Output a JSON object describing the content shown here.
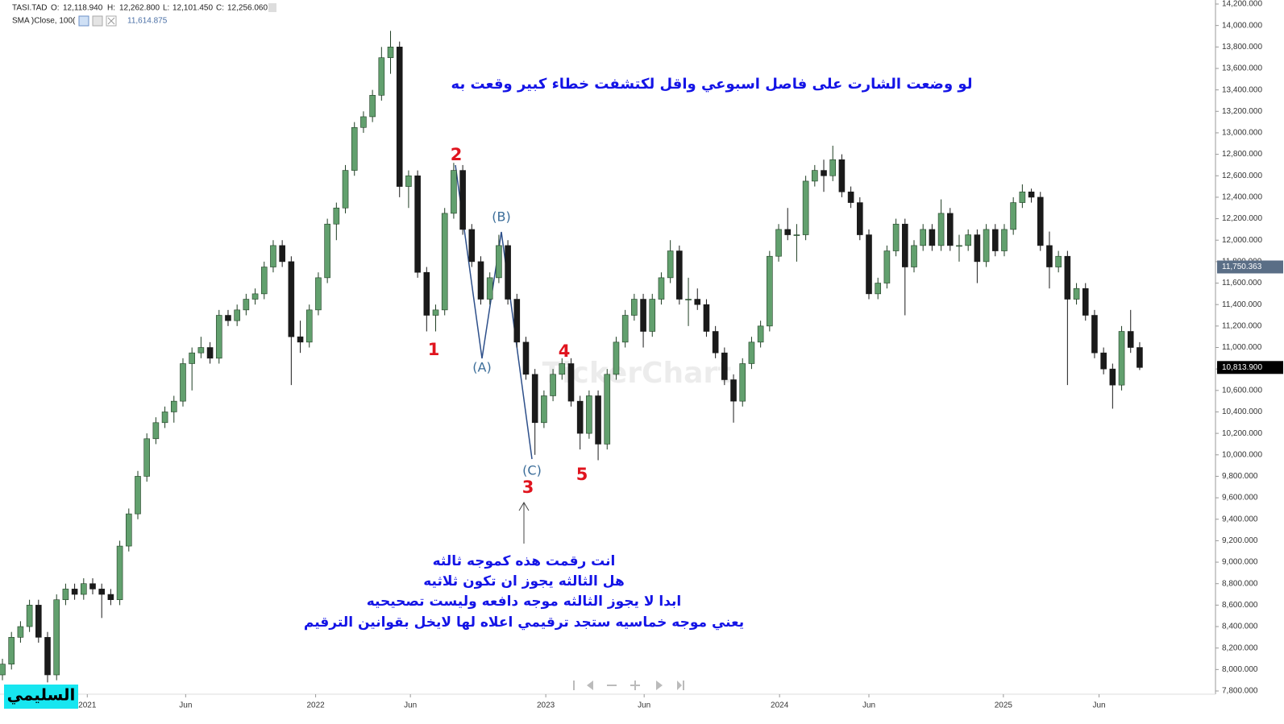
{
  "header": {
    "symbol": "TASI.TAD",
    "o_label": "O:",
    "o": "12,118.940",
    "h_label": "H:",
    "h": "12,262.800",
    "l_label": "L:",
    "l": "12,101.450",
    "c_label": "C:",
    "c": "12,256.060",
    "sma_label": "SMA )Close, 100(",
    "sma_value": "11,614.875"
  },
  "chart_data": {
    "type": "candlestick",
    "grid": false,
    "up_color": "#62a06e",
    "down_color": "#1a1a1a",
    "annotation_color": "#1414e6",
    "wave_color": "#e0141e",
    "corrective_color": "#3b6d99",
    "xlim": [
      -0.27,
      134.4
    ],
    "ylim": [
      7800,
      14200
    ],
    "xticks": [
      {
        "value": 9.4,
        "label": "2021"
      },
      {
        "value": 20.3,
        "label": "Jun"
      },
      {
        "value": 34.7,
        "label": "2022"
      },
      {
        "value": 45.2,
        "label": "Jun"
      },
      {
        "value": 60.2,
        "label": "2023"
      },
      {
        "value": 71.1,
        "label": "Jun"
      },
      {
        "value": 86.1,
        "label": "2024"
      },
      {
        "value": 96,
        "label": "Jun"
      },
      {
        "value": 110.9,
        "label": "2025"
      },
      {
        "value": 121.5,
        "label": "Jun"
      }
    ],
    "yticks": [
      {
        "value": 7800,
        "label": "7,800.000"
      },
      {
        "value": 8000,
        "label": "8,000.000"
      },
      {
        "value": 8200,
        "label": "8,200.000"
      },
      {
        "value": 8400,
        "label": "8,400.000"
      },
      {
        "value": 8600,
        "label": "8,600.000"
      },
      {
        "value": 8800,
        "label": "8,800.000"
      },
      {
        "value": 9000,
        "label": "9,000.000"
      },
      {
        "value": 9200,
        "label": "9,200.000"
      },
      {
        "value": 9400,
        "label": "9,400.000"
      },
      {
        "value": 9600,
        "label": "9,600.000"
      },
      {
        "value": 9800,
        "label": "9,800.000"
      },
      {
        "value": 10000,
        "label": "10,000.000"
      },
      {
        "value": 10200,
        "label": "10,200.000"
      },
      {
        "value": 10400,
        "label": "10,400.000"
      },
      {
        "value": 10600,
        "label": "10,600.000"
      },
      {
        "value": 10800,
        "label": "10,800.000"
      },
      {
        "value": 11000,
        "label": "11,000.000"
      },
      {
        "value": 11200,
        "label": "11,200.000"
      },
      {
        "value": 11400,
        "label": "11,400.000"
      },
      {
        "value": 11600,
        "label": "11,600.000"
      },
      {
        "value": 11800,
        "label": "11,800.000"
      },
      {
        "value": 12000,
        "label": "12,000.000"
      },
      {
        "value": 12200,
        "label": "12,200.000"
      },
      {
        "value": 12400,
        "label": "12,400.000"
      },
      {
        "value": 12600,
        "label": "12,600.000"
      },
      {
        "value": 12800,
        "label": "12,800.000"
      },
      {
        "value": 13000,
        "label": "13,000.000"
      },
      {
        "value": 13200,
        "label": "13,200.000"
      },
      {
        "value": 13400,
        "label": "13,400.000"
      },
      {
        "value": 13600,
        "label": "13,600.000"
      },
      {
        "value": 13800,
        "label": "13,800.000"
      },
      {
        "value": 14000,
        "label": "14,000.000"
      },
      {
        "value": 14200,
        "label": "14,200.000"
      }
    ],
    "price_markers": [
      {
        "value": 11750.363,
        "label": "11,750.363",
        "color": "#5a6e86"
      },
      {
        "value": 10813.9,
        "label": "10,813.900",
        "color": "#000000"
      }
    ],
    "candles": [
      [
        7950,
        8100,
        7900,
        8050
      ],
      [
        8050,
        8350,
        8000,
        8300
      ],
      [
        8300,
        8450,
        8250,
        8400
      ],
      [
        8400,
        8650,
        8350,
        8600
      ],
      [
        8600,
        8650,
        8250,
        8300
      ],
      [
        8300,
        8350,
        7880,
        7950
      ],
      [
        7950,
        8700,
        7900,
        8650
      ],
      [
        8650,
        8800,
        8600,
        8750
      ],
      [
        8750,
        8800,
        8650,
        8700
      ],
      [
        8700,
        8850,
        8650,
        8800
      ],
      [
        8800,
        8850,
        8700,
        8750
      ],
      [
        8750,
        8800,
        8480,
        8700
      ],
      [
        8700,
        8750,
        8600,
        8650
      ],
      [
        8650,
        9200,
        8600,
        9150
      ],
      [
        9150,
        9500,
        9100,
        9450
      ],
      [
        9450,
        9850,
        9400,
        9800
      ],
      [
        9800,
        10200,
        9750,
        10150
      ],
      [
        10150,
        10350,
        10100,
        10300
      ],
      [
        10300,
        10450,
        10250,
        10400
      ],
      [
        10400,
        10550,
        10300,
        10500
      ],
      [
        10500,
        10900,
        10450,
        10850
      ],
      [
        10850,
        11000,
        10600,
        10950
      ],
      [
        10950,
        11100,
        10900,
        11000
      ],
      [
        11000,
        11050,
        10850,
        10900
      ],
      [
        10900,
        11350,
        10850,
        11300
      ],
      [
        11300,
        11350,
        11200,
        11250
      ],
      [
        11250,
        11400,
        11200,
        11350
      ],
      [
        11350,
        11500,
        11300,
        11450
      ],
      [
        11450,
        11550,
        11400,
        11500
      ],
      [
        11500,
        11800,
        11450,
        11750
      ],
      [
        11750,
        12000,
        11700,
        11950
      ],
      [
        11950,
        12000,
        11750,
        11800
      ],
      [
        11800,
        11850,
        10650,
        11100
      ],
      [
        11100,
        11250,
        10950,
        11050
      ],
      [
        11050,
        11400,
        11000,
        11350
      ],
      [
        11350,
        11700,
        11300,
        11650
      ],
      [
        11650,
        12200,
        11600,
        12150
      ],
      [
        12150,
        12350,
        12000,
        12300
      ],
      [
        12300,
        12700,
        12250,
        12650
      ],
      [
        12650,
        13100,
        12600,
        13050
      ],
      [
        13050,
        13200,
        13000,
        13150
      ],
      [
        13150,
        13400,
        13100,
        13350
      ],
      [
        13350,
        13800,
        13300,
        13700
      ],
      [
        13700,
        13950,
        13550,
        13800
      ],
      [
        13800,
        13850,
        12400,
        12500
      ],
      [
        12500,
        12650,
        12300,
        12600
      ],
      [
        12600,
        12650,
        11650,
        11700
      ],
      [
        11700,
        11750,
        11150,
        11300
      ],
      [
        11300,
        11400,
        11150,
        11350
      ],
      [
        11350,
        12300,
        11300,
        12250
      ],
      [
        12250,
        12720,
        12200,
        12650
      ],
      [
        12650,
        12700,
        12050,
        12100
      ],
      [
        12100,
        12150,
        11750,
        11800
      ],
      [
        11800,
        11850,
        11400,
        11450
      ],
      [
        11450,
        11700,
        11400,
        11650
      ],
      [
        11650,
        12050,
        11600,
        11950
      ],
      [
        11950,
        12000,
        11400,
        11450
      ],
      [
        11450,
        11500,
        11000,
        11050
      ],
      [
        11050,
        11100,
        10700,
        10750
      ],
      [
        10750,
        10800,
        10000,
        10300
      ],
      [
        10300,
        10600,
        10250,
        10550
      ],
      [
        10550,
        10800,
        10500,
        10750
      ],
      [
        10750,
        10900,
        10700,
        10850
      ],
      [
        10850,
        10900,
        10450,
        10500
      ],
      [
        10500,
        10550,
        10050,
        10200
      ],
      [
        10200,
        10600,
        10150,
        10550
      ],
      [
        10550,
        10600,
        9950,
        10100
      ],
      [
        10100,
        10800,
        10050,
        10750
      ],
      [
        10750,
        11100,
        10700,
        11050
      ],
      [
        11050,
        11350,
        11000,
        11300
      ],
      [
        11300,
        11500,
        11250,
        11450
      ],
      [
        11450,
        11500,
        11000,
        11150
      ],
      [
        11150,
        11500,
        11100,
        11450
      ],
      [
        11450,
        11700,
        11400,
        11650
      ],
      [
        11650,
        12000,
        11600,
        11900
      ],
      [
        11900,
        11950,
        11400,
        11450
      ],
      [
        11450,
        11650,
        11200,
        11450
      ],
      [
        11450,
        11550,
        11350,
        11400
      ],
      [
        11400,
        11450,
        11100,
        11150
      ],
      [
        11150,
        11200,
        10900,
        10950
      ],
      [
        10950,
        11000,
        10650,
        10700
      ],
      [
        10700,
        10750,
        10300,
        10500
      ],
      [
        10500,
        10900,
        10450,
        10850
      ],
      [
        10850,
        11100,
        10800,
        11050
      ],
      [
        11050,
        11250,
        11000,
        11200
      ],
      [
        11200,
        11900,
        11150,
        11850
      ],
      [
        11850,
        12150,
        11800,
        12100
      ],
      [
        12100,
        12300,
        12000,
        12050
      ],
      [
        12050,
        12150,
        11800,
        12050
      ],
      [
        12050,
        12600,
        12000,
        12550
      ],
      [
        12550,
        12700,
        12500,
        12650
      ],
      [
        12650,
        12750,
        12450,
        12600
      ],
      [
        12600,
        12880,
        12550,
        12750
      ],
      [
        12750,
        12800,
        12400,
        12450
      ],
      [
        12450,
        12500,
        12300,
        12350
      ],
      [
        12350,
        12400,
        12000,
        12050
      ],
      [
        12050,
        12100,
        11450,
        11500
      ],
      [
        11500,
        11650,
        11450,
        11600
      ],
      [
        11600,
        11950,
        11550,
        11900
      ],
      [
        11900,
        12200,
        11850,
        12150
      ],
      [
        12150,
        12200,
        11300,
        11750
      ],
      [
        11750,
        12000,
        11700,
        11950
      ],
      [
        11950,
        12150,
        11900,
        12100
      ],
      [
        12100,
        12150,
        11900,
        11950
      ],
      [
        11950,
        12380,
        11900,
        12250
      ],
      [
        12250,
        12300,
        11900,
        11950
      ],
      [
        11950,
        12050,
        11800,
        11950
      ],
      [
        11950,
        12100,
        11900,
        12050
      ],
      [
        12050,
        12100,
        11600,
        11800
      ],
      [
        11800,
        12150,
        11750,
        12100
      ],
      [
        12100,
        12150,
        11850,
        11900
      ],
      [
        11900,
        12150,
        11850,
        12100
      ],
      [
        12100,
        12400,
        12050,
        12350
      ],
      [
        12350,
        12520,
        12300,
        12450
      ],
      [
        12450,
        12480,
        12350,
        12400
      ],
      [
        12400,
        12450,
        11900,
        11950
      ],
      [
        11950,
        12080,
        11550,
        11750
      ],
      [
        11750,
        11900,
        11700,
        11850
      ],
      [
        11850,
        11900,
        10650,
        11450
      ],
      [
        11450,
        11600,
        11400,
        11550
      ],
      [
        11550,
        11600,
        11250,
        11300
      ],
      [
        11300,
        11350,
        10900,
        10950
      ],
      [
        10950,
        11000,
        10750,
        10800
      ],
      [
        10800,
        10850,
        10430,
        10650
      ],
      [
        10650,
        11200,
        10600,
        11150
      ],
      [
        11150,
        11350,
        10950,
        11000
      ],
      [
        11000,
        11050,
        10790,
        10813.9
      ]
    ],
    "annotations": [
      "لو وضعت الشارت على فاصل اسبوعي واقل لكتشفت خطاء كبير وقعت به",
      "انت رقمت هذه كموجه ثالثه",
      "هل الثالثه يجوز ان تكون ثلاثيه",
      "ابدا لا يجوز الثالثه موجه دافعه وليست تصحيحيه",
      "يعني موجه خماسيه ستجد ترقيمي اعلاه لها لايخل بقوانين الترقيم"
    ],
    "wave_labels": [
      "1",
      "2",
      "3",
      "4",
      "5"
    ],
    "corrective_labels": [
      "(A)",
      "(B)",
      "(C)"
    ],
    "watermark": "TickerChart",
    "signature": "السليمي"
  }
}
